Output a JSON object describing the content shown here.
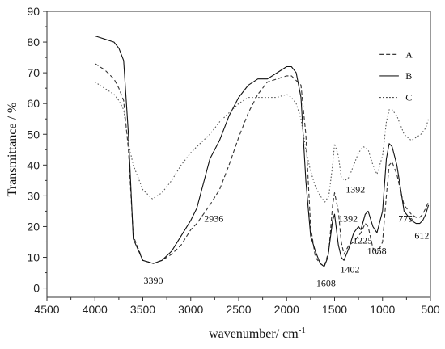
{
  "chart_data": {
    "type": "line",
    "title": "",
    "xlabel": "wavenumber/ cm",
    "xlabel_sup": "-1",
    "ylabel": "Transmittance / %",
    "xlim": [
      4500,
      500
    ],
    "ylim": [
      -3,
      90
    ],
    "xticks": [
      4500,
      4000,
      3500,
      3000,
      2500,
      2000,
      1500,
      1000,
      500
    ],
    "yticks": [
      0,
      10,
      20,
      30,
      40,
      50,
      60,
      70,
      80,
      90
    ],
    "grid": false,
    "legend_position": "top-right",
    "series": [
      {
        "name": "A",
        "style": "dashed",
        "color": "#333333",
        "points": [
          [
            4000,
            73
          ],
          [
            3900,
            71
          ],
          [
            3800,
            68
          ],
          [
            3750,
            65
          ],
          [
            3700,
            61
          ],
          [
            3650,
            45
          ],
          [
            3600,
            17
          ],
          [
            3500,
            9
          ],
          [
            3390,
            8
          ],
          [
            3300,
            9
          ],
          [
            3200,
            11
          ],
          [
            3100,
            14
          ],
          [
            3000,
            19
          ],
          [
            2936,
            21
          ],
          [
            2800,
            27
          ],
          [
            2700,
            32
          ],
          [
            2600,
            40
          ],
          [
            2500,
            49
          ],
          [
            2400,
            57
          ],
          [
            2300,
            63
          ],
          [
            2200,
            67
          ],
          [
            2100,
            68
          ],
          [
            2000,
            69
          ],
          [
            1950,
            69
          ],
          [
            1850,
            66
          ],
          [
            1800,
            50
          ],
          [
            1750,
            20
          ],
          [
            1700,
            10
          ],
          [
            1650,
            8
          ],
          [
            1608,
            7
          ],
          [
            1560,
            12
          ],
          [
            1520,
            27
          ],
          [
            1500,
            31
          ],
          [
            1460,
            25
          ],
          [
            1430,
            15
          ],
          [
            1402,
            11
          ],
          [
            1350,
            14
          ],
          [
            1300,
            15
          ],
          [
            1250,
            17
          ],
          [
            1225,
            18
          ],
          [
            1180,
            21
          ],
          [
            1150,
            20
          ],
          [
            1100,
            13
          ],
          [
            1058,
            11
          ],
          [
            1000,
            15
          ],
          [
            960,
            30
          ],
          [
            930,
            40
          ],
          [
            900,
            41
          ],
          [
            850,
            37
          ],
          [
            800,
            30
          ],
          [
            775,
            27
          ],
          [
            700,
            24
          ],
          [
            650,
            23
          ],
          [
            612,
            23
          ],
          [
            580,
            24
          ],
          [
            550,
            26
          ],
          [
            520,
            28
          ]
        ]
      },
      {
        "name": "B",
        "style": "solid",
        "color": "#111111",
        "points": [
          [
            4000,
            82
          ],
          [
            3900,
            81
          ],
          [
            3800,
            80
          ],
          [
            3750,
            78
          ],
          [
            3700,
            74
          ],
          [
            3650,
            50
          ],
          [
            3600,
            16
          ],
          [
            3500,
            9
          ],
          [
            3390,
            8
          ],
          [
            3300,
            9
          ],
          [
            3200,
            12
          ],
          [
            3100,
            17
          ],
          [
            3000,
            22
          ],
          [
            2936,
            26
          ],
          [
            2800,
            42
          ],
          [
            2700,
            48
          ],
          [
            2600,
            56
          ],
          [
            2500,
            62
          ],
          [
            2400,
            66
          ],
          [
            2300,
            68
          ],
          [
            2200,
            68
          ],
          [
            2100,
            70
          ],
          [
            2000,
            72
          ],
          [
            1950,
            72
          ],
          [
            1900,
            70
          ],
          [
            1850,
            62
          ],
          [
            1800,
            35
          ],
          [
            1750,
            17
          ],
          [
            1700,
            12
          ],
          [
            1650,
            8
          ],
          [
            1608,
            7
          ],
          [
            1570,
            10
          ],
          [
            1520,
            22
          ],
          [
            1500,
            24
          ],
          [
            1460,
            14
          ],
          [
            1430,
            10
          ],
          [
            1402,
            9
          ],
          [
            1350,
            13
          ],
          [
            1300,
            18
          ],
          [
            1250,
            20
          ],
          [
            1225,
            19
          ],
          [
            1180,
            24
          ],
          [
            1150,
            25
          ],
          [
            1100,
            20
          ],
          [
            1058,
            18
          ],
          [
            1000,
            25
          ],
          [
            960,
            42
          ],
          [
            930,
            47
          ],
          [
            900,
            46
          ],
          [
            850,
            40
          ],
          [
            800,
            30
          ],
          [
            775,
            25
          ],
          [
            700,
            22
          ],
          [
            650,
            21
          ],
          [
            612,
            21
          ],
          [
            580,
            22
          ],
          [
            550,
            24
          ],
          [
            520,
            27
          ]
        ]
      },
      {
        "name": "C",
        "style": "dotted",
        "color": "#555555",
        "points": [
          [
            4000,
            67
          ],
          [
            3900,
            65
          ],
          [
            3800,
            63
          ],
          [
            3750,
            61
          ],
          [
            3700,
            58
          ],
          [
            3650,
            47
          ],
          [
            3600,
            40
          ],
          [
            3500,
            32
          ],
          [
            3400,
            29
          ],
          [
            3300,
            31
          ],
          [
            3200,
            35
          ],
          [
            3100,
            40
          ],
          [
            3000,
            44
          ],
          [
            2936,
            46
          ],
          [
            2800,
            50
          ],
          [
            2700,
            54
          ],
          [
            2600,
            57
          ],
          [
            2500,
            60
          ],
          [
            2400,
            62
          ],
          [
            2300,
            62
          ],
          [
            2200,
            62
          ],
          [
            2100,
            62
          ],
          [
            2000,
            63
          ],
          [
            1950,
            62
          ],
          [
            1900,
            60
          ],
          [
            1850,
            55
          ],
          [
            1800,
            45
          ],
          [
            1750,
            38
          ],
          [
            1700,
            33
          ],
          [
            1650,
            30
          ],
          [
            1600,
            28
          ],
          [
            1560,
            30
          ],
          [
            1520,
            40
          ],
          [
            1500,
            47
          ],
          [
            1460,
            43
          ],
          [
            1430,
            36
          ],
          [
            1392,
            35
          ],
          [
            1350,
            36
          ],
          [
            1300,
            40
          ],
          [
            1250,
            44
          ],
          [
            1200,
            46
          ],
          [
            1150,
            45
          ],
          [
            1100,
            40
          ],
          [
            1058,
            37
          ],
          [
            1000,
            43
          ],
          [
            960,
            54
          ],
          [
            930,
            58
          ],
          [
            900,
            58
          ],
          [
            850,
            56
          ],
          [
            800,
            52
          ],
          [
            775,
            50
          ],
          [
            700,
            48
          ],
          [
            650,
            49
          ],
          [
            600,
            50
          ],
          [
            550,
            52
          ],
          [
            520,
            55
          ]
        ]
      }
    ],
    "legend": [
      {
        "label": "A",
        "style": "dashed"
      },
      {
        "label": "B",
        "style": "solid"
      },
      {
        "label": "C",
        "style": "dotted"
      }
    ],
    "annotations": [
      {
        "text": "3390",
        "x": 3390,
        "y": 1.5
      },
      {
        "text": "2936",
        "x": 2760,
        "y": 21.5
      },
      {
        "text": "1608",
        "x": 1590,
        "y": 0.5
      },
      {
        "text": "1392",
        "x": 1283,
        "y": 31
      },
      {
        "text": "1392",
        "x": 1360,
        "y": 21.5
      },
      {
        "text": "1402",
        "x": 1340,
        "y": 5
      },
      {
        "text": "1225",
        "x": 1208,
        "y": 14.5
      },
      {
        "text": "1058",
        "x": 1060,
        "y": 11
      },
      {
        "text": "775",
        "x": 760,
        "y": 21.5
      },
      {
        "text": "612",
        "x": 590,
        "y": 16
      }
    ]
  }
}
